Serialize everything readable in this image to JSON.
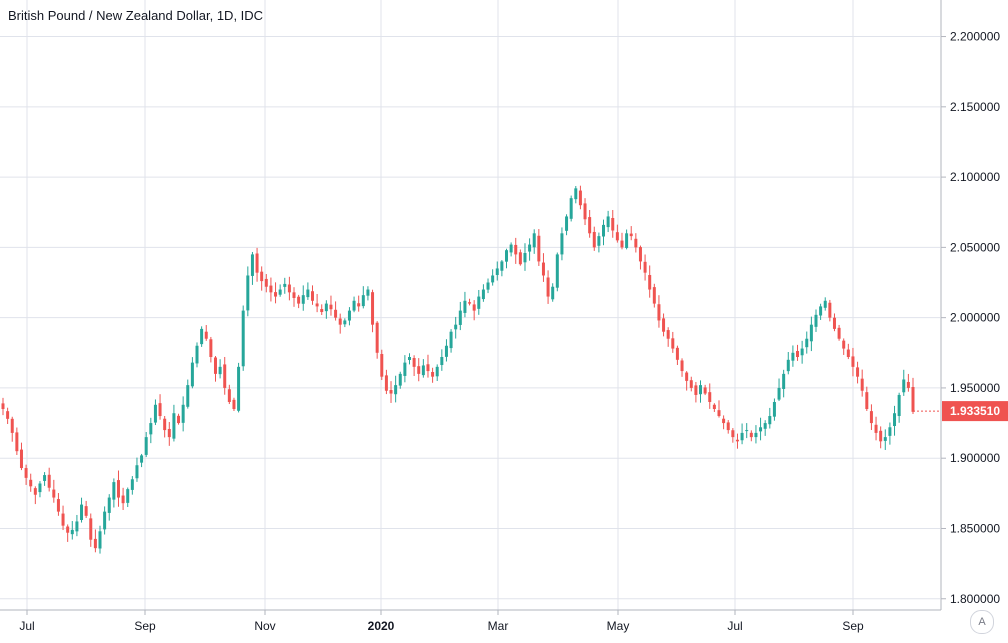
{
  "header": {
    "title": "British Pound / New Zealand Dollar, 1D, IDC"
  },
  "controls": {
    "auto_scale_label": "A"
  },
  "colors": {
    "up": "#26a69a",
    "down": "#ef5350",
    "grid": "#e0e3eb",
    "axis_text": "#131722",
    "background": "#ffffff"
  },
  "chart_data": {
    "type": "candlestick",
    "title": "British Pound / New Zealand Dollar, 1D, IDC",
    "symbol": "GBPNZD",
    "interval": "1D",
    "source": "IDC",
    "x_ticks": [
      "Jul",
      "Sep",
      "Nov",
      "2020",
      "Mar",
      "May",
      "Jul",
      "Sep"
    ],
    "y_ticks": [
      "2.200000",
      "2.150000",
      "2.100000",
      "2.050000",
      "2.000000",
      "1.950000",
      "1.900000",
      "1.850000",
      "1.800000"
    ],
    "ylim": [
      1.792,
      2.226
    ],
    "grid": true,
    "last_price": "1.933510",
    "last_price_direction": "down",
    "series_close_approx": [
      1.935,
      1.928,
      1.918,
      1.905,
      1.893,
      1.886,
      1.88,
      1.874,
      1.882,
      1.888,
      1.879,
      1.872,
      1.862,
      1.852,
      1.847,
      1.849,
      1.855,
      1.867,
      1.859,
      1.842,
      1.836,
      1.848,
      1.862,
      1.872,
      1.883,
      1.872,
      1.868,
      1.878,
      1.885,
      1.895,
      1.902,
      1.915,
      1.925,
      1.938,
      1.93,
      1.92,
      1.915,
      1.932,
      1.925,
      1.938,
      1.952,
      1.968,
      1.98,
      1.992,
      1.985,
      1.972,
      1.96,
      1.965,
      1.95,
      1.94,
      1.935,
      1.965,
      2.005,
      2.03,
      2.045,
      2.032,
      2.026,
      2.022,
      2.018,
      2.015,
      2.02,
      2.024,
      2.018,
      2.014,
      2.01,
      2.016,
      2.02,
      2.012,
      2.008,
      2.004,
      2.01,
      2.006,
      2.0,
      1.995,
      1.998,
      2.005,
      2.012,
      2.008,
      2.016,
      2.02,
      1.995,
      1.975,
      1.958,
      1.948,
      1.946,
      1.952,
      1.96,
      1.968,
      1.972,
      1.965,
      1.96,
      1.966,
      1.962,
      1.958,
      1.965,
      1.972,
      1.98,
      1.99,
      1.995,
      2.005,
      2.012,
      2.01,
      2.005,
      2.015,
      2.02,
      2.025,
      2.03,
      2.035,
      2.04,
      2.048,
      2.052,
      2.045,
      2.038,
      2.046,
      2.052,
      2.06,
      2.04,
      2.03,
      2.015,
      2.022,
      2.045,
      2.06,
      2.072,
      2.085,
      2.092,
      2.08,
      2.07,
      2.06,
      2.05,
      2.058,
      2.066,
      2.072,
      2.062,
      2.055,
      2.05,
      2.06,
      2.058,
      2.05,
      2.04,
      2.032,
      2.02,
      2.01,
      1.998,
      1.99,
      1.985,
      1.978,
      1.97,
      1.962,
      1.955,
      1.95,
      1.945,
      1.952,
      1.946,
      1.94,
      1.935,
      1.93,
      1.925,
      1.92,
      1.915,
      1.912,
      1.918,
      1.92,
      1.915,
      1.918,
      1.922,
      1.925,
      1.93,
      1.94,
      1.95,
      1.96,
      1.97,
      1.975,
      1.972,
      1.978,
      1.985,
      1.995,
      2.002,
      2.008,
      2.012,
      2.0,
      1.992,
      1.985,
      1.978,
      1.972,
      1.965,
      1.958,
      1.948,
      1.935,
      1.925,
      1.918,
      1.912,
      1.915,
      1.922,
      1.932,
      1.945,
      1.956,
      1.95,
      1.933
    ]
  }
}
